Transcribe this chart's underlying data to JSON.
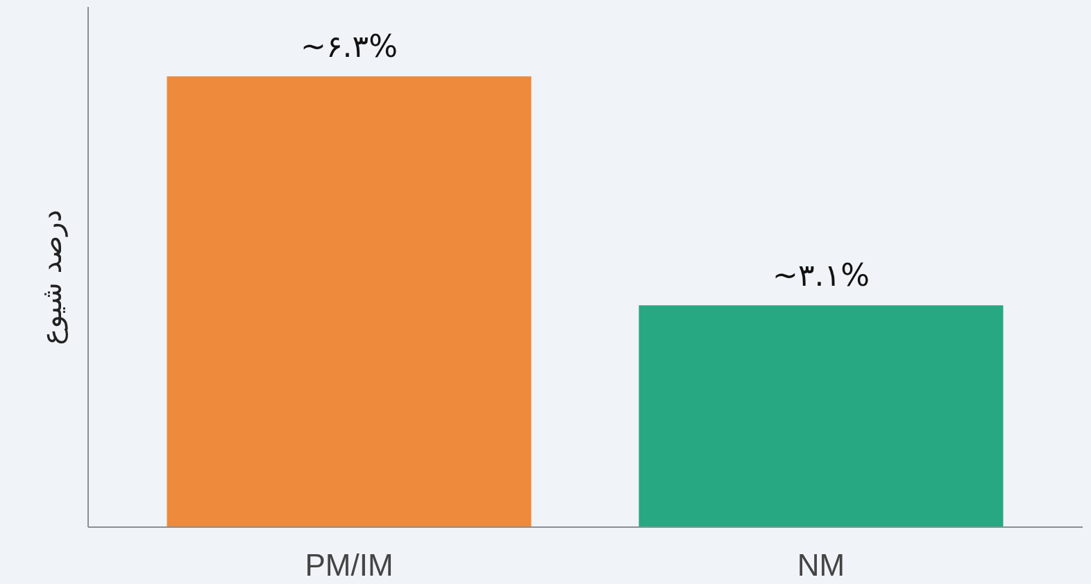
{
  "chart_data": {
    "type": "bar",
    "ylabel": "درصد شیوع",
    "categories": [
      "PM/IM",
      "NM"
    ],
    "values": [
      6.3,
      3.1
    ],
    "colors": [
      "#ee8a3c",
      "#27a882"
    ],
    "value_labels": [
      "~۶.۳%",
      "~۳.۱%"
    ],
    "tick_labels": "x"
  }
}
